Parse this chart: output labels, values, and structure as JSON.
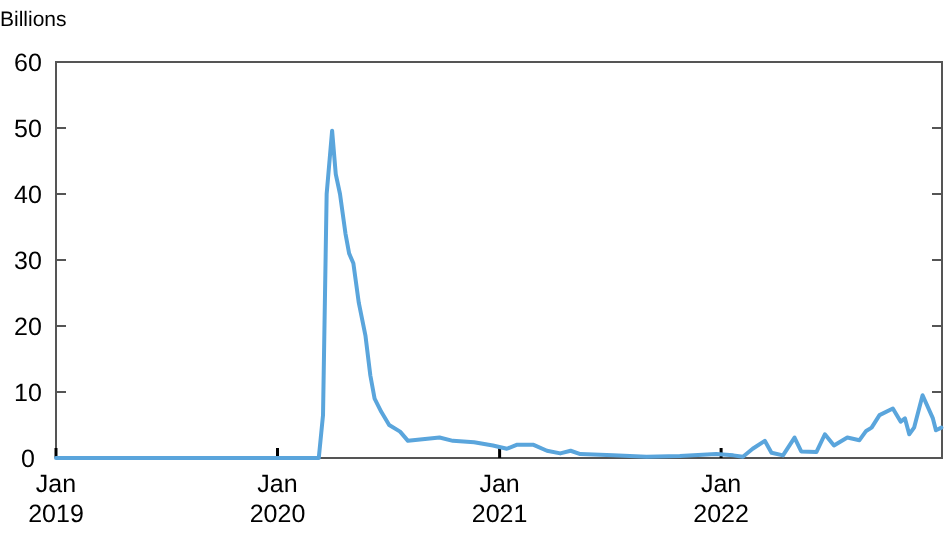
{
  "chart_data": {
    "type": "line",
    "ylabel": "Billions",
    "xlim": [
      "2019-01-01",
      "2022-12-31"
    ],
    "ylim": [
      0,
      60
    ],
    "yticks": [
      0,
      10,
      20,
      30,
      40,
      50,
      60
    ],
    "xticks": [
      {
        "value": "2019-01-01",
        "label": "Jan\n2019"
      },
      {
        "value": "2020-01-01",
        "label": "Jan\n2020"
      },
      {
        "value": "2021-01-01",
        "label": "Jan\n2021"
      },
      {
        "value": "2022-01-01",
        "label": "Jan\n2022"
      }
    ],
    "series": [
      {
        "color": "#5aa5dc",
        "x": [
          "2019-01-01",
          "2020-03-09",
          "2020-03-16",
          "2020-03-22",
          "2020-03-31",
          "2020-04-06",
          "2020-04-13",
          "2020-04-22",
          "2020-04-28",
          "2020-05-05",
          "2020-05-14",
          "2020-05-25",
          "2020-06-02",
          "2020-06-09",
          "2020-06-20",
          "2020-07-03",
          "2020-07-21",
          "2020-08-03",
          "2020-08-23",
          "2020-09-24",
          "2020-10-16",
          "2020-11-20",
          "2020-12-21",
          "2021-01-13",
          "2021-01-29",
          "2021-02-26",
          "2021-03-20",
          "2021-04-11",
          "2021-04-28",
          "2021-05-14",
          "2021-07-07",
          "2021-08-31",
          "2021-10-25",
          "2021-12-24",
          "2022-01-21",
          "2022-02-06",
          "2022-02-22",
          "2022-03-14",
          "2022-03-25",
          "2022-04-13",
          "2022-05-02",
          "2022-05-13",
          "2022-06-07",
          "2022-06-21",
          "2022-07-06",
          "2022-07-28",
          "2022-08-17",
          "2022-08-28",
          "2022-09-06",
          "2022-09-19",
          "2022-10-11",
          "2022-10-24",
          "2022-10-31",
          "2022-11-07",
          "2022-11-15",
          "2022-11-29",
          "2022-12-16",
          "2022-12-21",
          "2022-12-30"
        ],
        "values": [
          0,
          0,
          6.5,
          40,
          49.6,
          43,
          40,
          34,
          31,
          29.5,
          23.5,
          18.5,
          12.5,
          9,
          7,
          5,
          4,
          2.6,
          2.8,
          3.1,
          2.6,
          2.4,
          1.9,
          1.4,
          2,
          2,
          1.1,
          0.7,
          1.1,
          0.6,
          0.4,
          0.2,
          0.3,
          0.6,
          0.4,
          0.2,
          1.4,
          2.6,
          0.8,
          0.4,
          3.1,
          1,
          0.9,
          3.6,
          1.9,
          3.1,
          2.7,
          4.1,
          4.6,
          6.5,
          7.5,
          5.5,
          6,
          3.6,
          4.6,
          9.5,
          6,
          4.2,
          4.6
        ]
      }
    ]
  }
}
